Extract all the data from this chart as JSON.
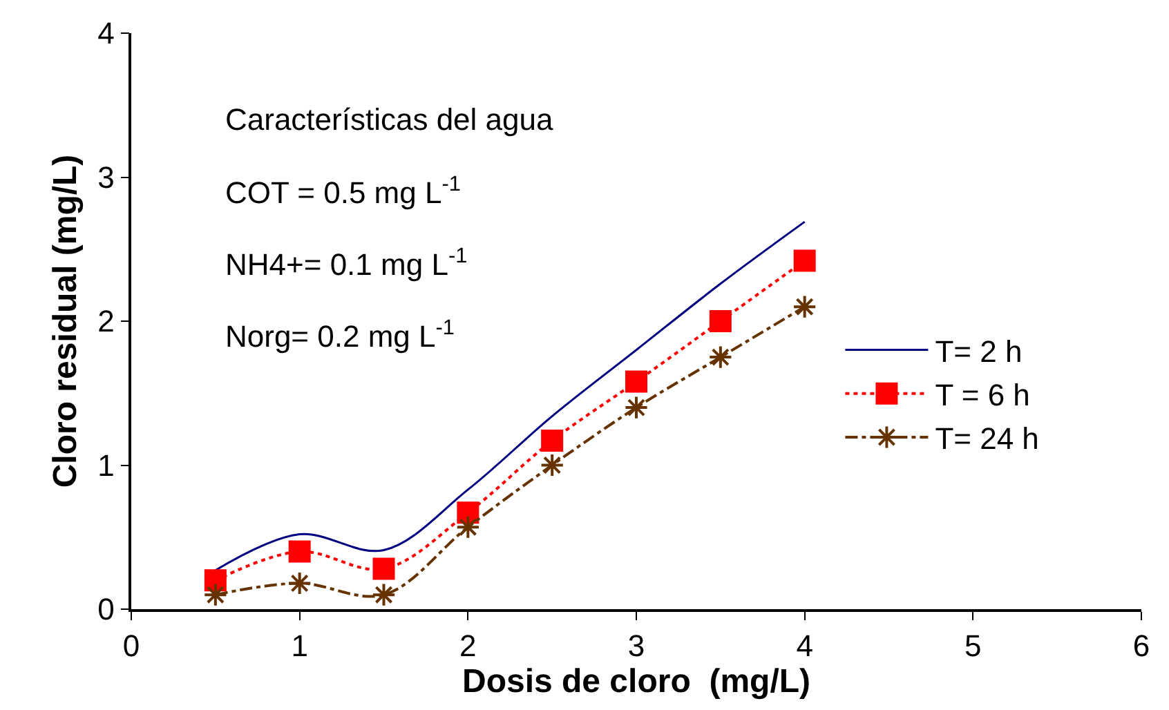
{
  "chart_data": {
    "type": "line",
    "xlabel": "Dosis de cloro  (mg/L)",
    "ylabel": "Cloro residual (mg/L)",
    "x": [
      0.5,
      1,
      1.5,
      2,
      2.5,
      3,
      3.5,
      4
    ],
    "series": [
      {
        "name": "T= 2 h",
        "color": "#000080",
        "values": [
          0.27,
          0.52,
          0.41,
          0.83,
          1.34,
          1.8,
          2.26,
          2.69
        ],
        "marker": "none",
        "line_style": "solid"
      },
      {
        "name": "T = 6 h",
        "color": "#ff0000",
        "values": [
          0.2,
          0.4,
          0.28,
          0.67,
          1.17,
          1.58,
          2.0,
          2.42
        ],
        "marker": "square",
        "line_style": "dotted"
      },
      {
        "name": "T= 24 h",
        "color": "#663300",
        "values": [
          0.1,
          0.18,
          0.1,
          0.57,
          1.0,
          1.4,
          1.75,
          2.1
        ],
        "marker": "cross",
        "line_style": "dashed"
      }
    ],
    "xlim": [
      0,
      6
    ],
    "xticks": [
      0,
      1,
      2,
      3,
      4,
      5,
      6
    ],
    "ylim": [
      0,
      4
    ],
    "yticks": [
      0,
      1,
      2,
      3,
      4
    ],
    "legend": "right",
    "annotations": [
      "Características del agua",
      "COT = 0.5 mg L$^{-1}$",
      "NH4+= 0.1 mg L$^{-1}$",
      "Norg= 0.2 mg L$^{-1}$"
    ]
  }
}
